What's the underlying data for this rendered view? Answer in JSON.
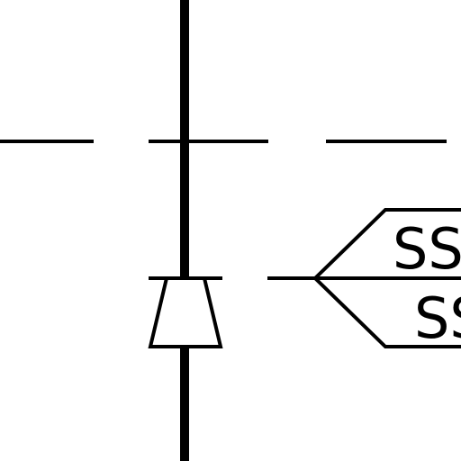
{
  "diagram": {
    "colors": {
      "background": "#ffffff",
      "stroke": "#000000"
    },
    "labels": {
      "top_tag": "SS",
      "bottom_tag": "SS"
    },
    "top_edge_glyph": "3"
  }
}
